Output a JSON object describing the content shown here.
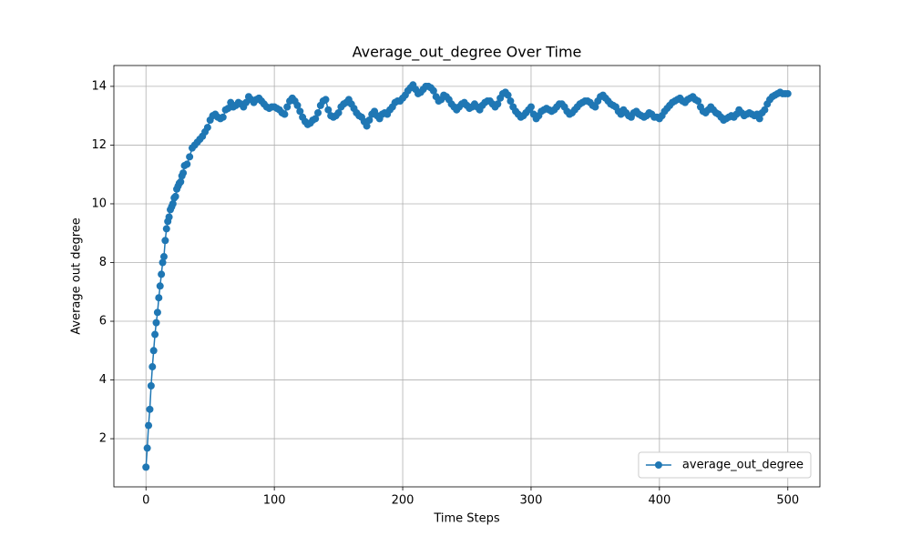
{
  "chart_data": {
    "type": "line",
    "title": "Average_out_degree Over Time",
    "x_label": "Time Steps",
    "y_label": "Average out degree",
    "xlim": [
      -25,
      525
    ],
    "ylim": [
      0.36,
      14.71
    ],
    "xticks": [
      0,
      100,
      200,
      300,
      400,
      500
    ],
    "yticks": [
      2,
      4,
      6,
      8,
      10,
      12,
      14
    ],
    "grid": true,
    "legend": "lower right",
    "x": [
      0,
      1,
      2,
      3,
      4,
      5,
      6,
      7,
      8,
      9,
      10,
      11,
      12,
      13,
      14,
      15,
      16,
      17,
      18,
      19,
      20,
      21,
      22,
      23,
      24,
      25,
      26,
      27,
      28,
      29,
      30,
      32,
      34,
      36,
      38,
      40,
      42,
      44,
      46,
      48,
      50,
      52,
      54,
      56,
      58,
      60,
      62,
      64,
      66,
      68,
      70,
      72,
      74,
      76,
      78,
      80,
      82,
      84,
      86,
      88,
      90,
      92,
      94,
      96,
      98,
      100,
      102,
      104,
      106,
      108,
      110,
      112,
      114,
      116,
      118,
      120,
      122,
      124,
      126,
      128,
      130,
      132,
      134,
      136,
      138,
      140,
      142,
      144,
      146,
      148,
      150,
      152,
      154,
      156,
      158,
      160,
      162,
      164,
      166,
      168,
      170,
      172,
      174,
      176,
      178,
      180,
      182,
      184,
      186,
      188,
      190,
      192,
      194,
      196,
      198,
      200,
      202,
      204,
      206,
      208,
      210,
      212,
      214,
      216,
      218,
      220,
      222,
      224,
      226,
      228,
      230,
      232,
      234,
      236,
      238,
      240,
      242,
      244,
      246,
      248,
      250,
      252,
      254,
      256,
      258,
      260,
      262,
      264,
      266,
      268,
      270,
      272,
      274,
      276,
      278,
      280,
      282,
      284,
      286,
      288,
      290,
      292,
      294,
      296,
      298,
      300,
      302,
      304,
      306,
      308,
      310,
      312,
      314,
      316,
      318,
      320,
      322,
      324,
      326,
      328,
      330,
      332,
      334,
      336,
      338,
      340,
      342,
      344,
      346,
      348,
      350,
      352,
      354,
      356,
      358,
      360,
      362,
      364,
      366,
      368,
      370,
      372,
      374,
      376,
      378,
      380,
      382,
      384,
      386,
      388,
      390,
      392,
      394,
      396,
      398,
      400,
      402,
      404,
      406,
      408,
      410,
      412,
      414,
      416,
      418,
      420,
      422,
      424,
      426,
      428,
      430,
      432,
      434,
      436,
      438,
      440,
      442,
      444,
      446,
      448,
      450,
      452,
      454,
      456,
      458,
      460,
      462,
      464,
      466,
      468,
      470,
      472,
      474,
      476,
      478,
      480,
      482,
      484,
      486,
      488,
      490,
      492,
      494,
      496,
      498,
      500
    ],
    "series": [
      {
        "name": "average_out_degree",
        "color": "#1f77b4",
        "values": [
          1.03,
          1.68,
          2.45,
          3.0,
          3.8,
          4.45,
          5.0,
          5.55,
          5.95,
          6.3,
          6.8,
          7.2,
          7.6,
          8.0,
          8.2,
          8.75,
          9.15,
          9.4,
          9.55,
          9.8,
          9.9,
          10.0,
          10.2,
          10.25,
          10.5,
          10.6,
          10.7,
          10.75,
          10.95,
          11.05,
          11.3,
          11.35,
          11.6,
          11.9,
          12.0,
          12.1,
          12.2,
          12.3,
          12.45,
          12.6,
          12.85,
          13.0,
          13.05,
          12.95,
          12.9,
          12.95,
          13.2,
          13.25,
          13.45,
          13.3,
          13.35,
          13.45,
          13.4,
          13.3,
          13.45,
          13.65,
          13.55,
          13.45,
          13.55,
          13.6,
          13.5,
          13.4,
          13.3,
          13.25,
          13.3,
          13.3,
          13.25,
          13.2,
          13.1,
          13.05,
          13.3,
          13.5,
          13.6,
          13.5,
          13.35,
          13.15,
          12.95,
          12.8,
          12.7,
          12.75,
          12.85,
          12.9,
          13.1,
          13.35,
          13.5,
          13.55,
          13.2,
          13.0,
          12.95,
          13.0,
          13.1,
          13.3,
          13.4,
          13.45,
          13.55,
          13.4,
          13.25,
          13.1,
          13.0,
          12.95,
          12.8,
          12.65,
          12.85,
          13.05,
          13.15,
          13.0,
          12.9,
          13.05,
          13.1,
          13.05,
          13.2,
          13.3,
          13.45,
          13.5,
          13.5,
          13.6,
          13.7,
          13.85,
          13.95,
          14.05,
          13.9,
          13.75,
          13.8,
          13.9,
          14.0,
          14.0,
          13.95,
          13.85,
          13.65,
          13.5,
          13.55,
          13.7,
          13.65,
          13.55,
          13.4,
          13.3,
          13.2,
          13.3,
          13.4,
          13.45,
          13.35,
          13.25,
          13.3,
          13.4,
          13.3,
          13.2,
          13.35,
          13.45,
          13.5,
          13.5,
          13.4,
          13.3,
          13.4,
          13.6,
          13.75,
          13.8,
          13.7,
          13.5,
          13.3,
          13.15,
          13.05,
          12.95,
          13.0,
          13.1,
          13.2,
          13.3,
          13.05,
          12.9,
          13.0,
          13.15,
          13.2,
          13.25,
          13.2,
          13.15,
          13.2,
          13.3,
          13.4,
          13.4,
          13.3,
          13.15,
          13.05,
          13.1,
          13.2,
          13.3,
          13.4,
          13.45,
          13.5,
          13.5,
          13.45,
          13.35,
          13.3,
          13.5,
          13.65,
          13.7,
          13.6,
          13.5,
          13.4,
          13.35,
          13.3,
          13.15,
          13.05,
          13.2,
          13.1,
          13.0,
          12.95,
          13.1,
          13.15,
          13.05,
          13.0,
          12.95,
          13.0,
          13.1,
          13.05,
          12.95,
          12.95,
          12.9,
          13.0,
          13.15,
          13.25,
          13.35,
          13.45,
          13.5,
          13.55,
          13.6,
          13.5,
          13.45,
          13.55,
          13.6,
          13.65,
          13.55,
          13.5,
          13.3,
          13.15,
          13.1,
          13.2,
          13.3,
          13.2,
          13.1,
          13.05,
          12.95,
          12.85,
          12.9,
          12.95,
          13.0,
          12.95,
          13.05,
          13.2,
          13.1,
          13.0,
          13.05,
          13.1,
          13.05,
          13.0,
          13.05,
          12.9,
          13.1,
          13.2,
          13.4,
          13.55,
          13.65,
          13.7,
          13.75,
          13.8,
          13.75,
          13.75,
          13.75
        ]
      }
    ]
  }
}
